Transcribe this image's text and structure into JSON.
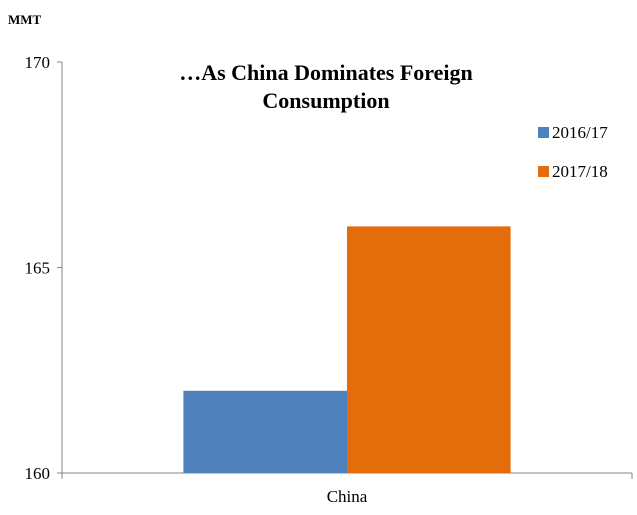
{
  "chart_data": {
    "type": "bar",
    "title_lines": [
      "…As China Dominates Foreign",
      "Consumption"
    ],
    "unit_label": "MMT",
    "xlabel": "",
    "ylabel": "",
    "categories": [
      "China"
    ],
    "series": [
      {
        "name": "2016/17",
        "values": [
          162
        ],
        "color": "#4f81bd"
      },
      {
        "name": "2017/18",
        "values": [
          166
        ],
        "color": "#e46c0a"
      }
    ],
    "ylim": [
      160,
      170
    ],
    "yticks": [
      160,
      165,
      170
    ],
    "grid": false,
    "legend_position": "right"
  }
}
